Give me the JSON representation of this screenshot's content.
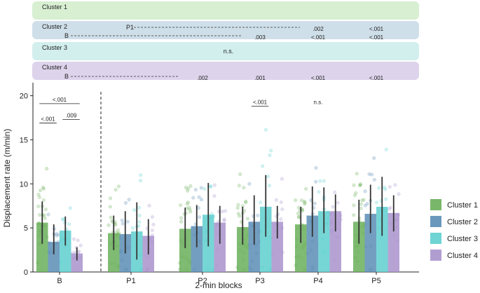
{
  "chart_data": {
    "type": "bar",
    "xlabel": "2-min blocks",
    "ylabel": "Displacement rate (m/min)",
    "ylim": [
      0,
      21
    ],
    "yticks": [
      0,
      5,
      10,
      15,
      20
    ],
    "categories": [
      "B",
      "P1",
      "P2",
      "P3",
      "P4",
      "P5"
    ],
    "series": [
      {
        "name": "Cluster 1",
        "color": "#6aaf5a",
        "values": [
          5.6,
          4.4,
          4.9,
          5.1,
          5.4,
          5.7
        ],
        "err_low": [
          3.2,
          2.5,
          2.7,
          3.1,
          3.3,
          3.2
        ],
        "err_high": [
          8.0,
          6.4,
          7.3,
          7.4,
          7.4,
          8.2
        ]
      },
      {
        "name": "Cluster 2",
        "color": "#5a8db5",
        "values": [
          3.4,
          4.3,
          5.2,
          5.7,
          6.4,
          6.6
        ],
        "err_low": [
          2.0,
          2.1,
          2.8,
          3.1,
          4.0,
          4.4
        ],
        "err_high": [
          5.4,
          6.9,
          7.6,
          8.7,
          9.7,
          9.9
        ]
      },
      {
        "name": "Cluster 3",
        "color": "#5ecfcf",
        "values": [
          4.7,
          4.6,
          6.5,
          7.4,
          6.9,
          7.4
        ],
        "err_low": [
          3.0,
          1.4,
          2.9,
          4.0,
          4.4,
          4.1
        ],
        "err_high": [
          6.3,
          7.9,
          10.1,
          11.0,
          9.6,
          10.8
        ]
      },
      {
        "name": "Cluster 4",
        "color": "#a993cc",
        "values": [
          2.1,
          4.1,
          5.6,
          5.7,
          6.9,
          6.7
        ],
        "err_low": [
          1.3,
          2.0,
          3.2,
          3.8,
          4.6,
          4.6
        ],
        "err_high": [
          2.8,
          6.0,
          7.5,
          7.5,
          8.8,
          8.7
        ]
      }
    ],
    "annotations": [
      {
        "label": "<.001",
        "category": "B",
        "from_series": 0,
        "to_series": 1,
        "y": 16.9
      },
      {
        "label": "<.001",
        "category": "B",
        "from_series": 0,
        "to_series": 3,
        "y": 19.1
      },
      {
        "label": ".009",
        "category": "B",
        "from_series": 2,
        "to_series": 3,
        "y": 17.3
      },
      {
        "label": "<.001",
        "category": "P3",
        "from_series": 1,
        "to_series": 2,
        "y": 18.8
      },
      {
        "label": "n.s.",
        "category": "P4",
        "y": 19.3
      }
    ],
    "comparison_panels": [
      {
        "cluster": "Cluster 1",
        "color": "#d8efd2",
        "rows": []
      },
      {
        "cluster": "Cluster 2",
        "color": "#cfdfe9",
        "rows": [
          {
            "reference": "P1",
            "results": [
              {
                "category": "P4",
                "label": ".002"
              },
              {
                "category": "P5",
                "label": "<.001"
              }
            ]
          },
          {
            "reference": "B",
            "results": [
              {
                "category": "P3",
                "label": ".003"
              },
              {
                "category": "P4",
                "label": "<.001"
              },
              {
                "category": "P5",
                "label": "<.001"
              }
            ]
          }
        ]
      },
      {
        "cluster": "Cluster 3",
        "color": "#d2efee",
        "summary": "n.s.",
        "rows": []
      },
      {
        "cluster": "Cluster 4",
        "color": "#ddd4ec",
        "rows": [
          {
            "reference": "B",
            "results": [
              {
                "category": "P2",
                "label": ".002"
              },
              {
                "category": "P3",
                "label": ".001"
              },
              {
                "category": "P4",
                "label": "<.001"
              },
              {
                "category": "P5",
                "label": "<.001"
              }
            ]
          }
        ]
      }
    ],
    "legend": {
      "placement": "right"
    }
  }
}
